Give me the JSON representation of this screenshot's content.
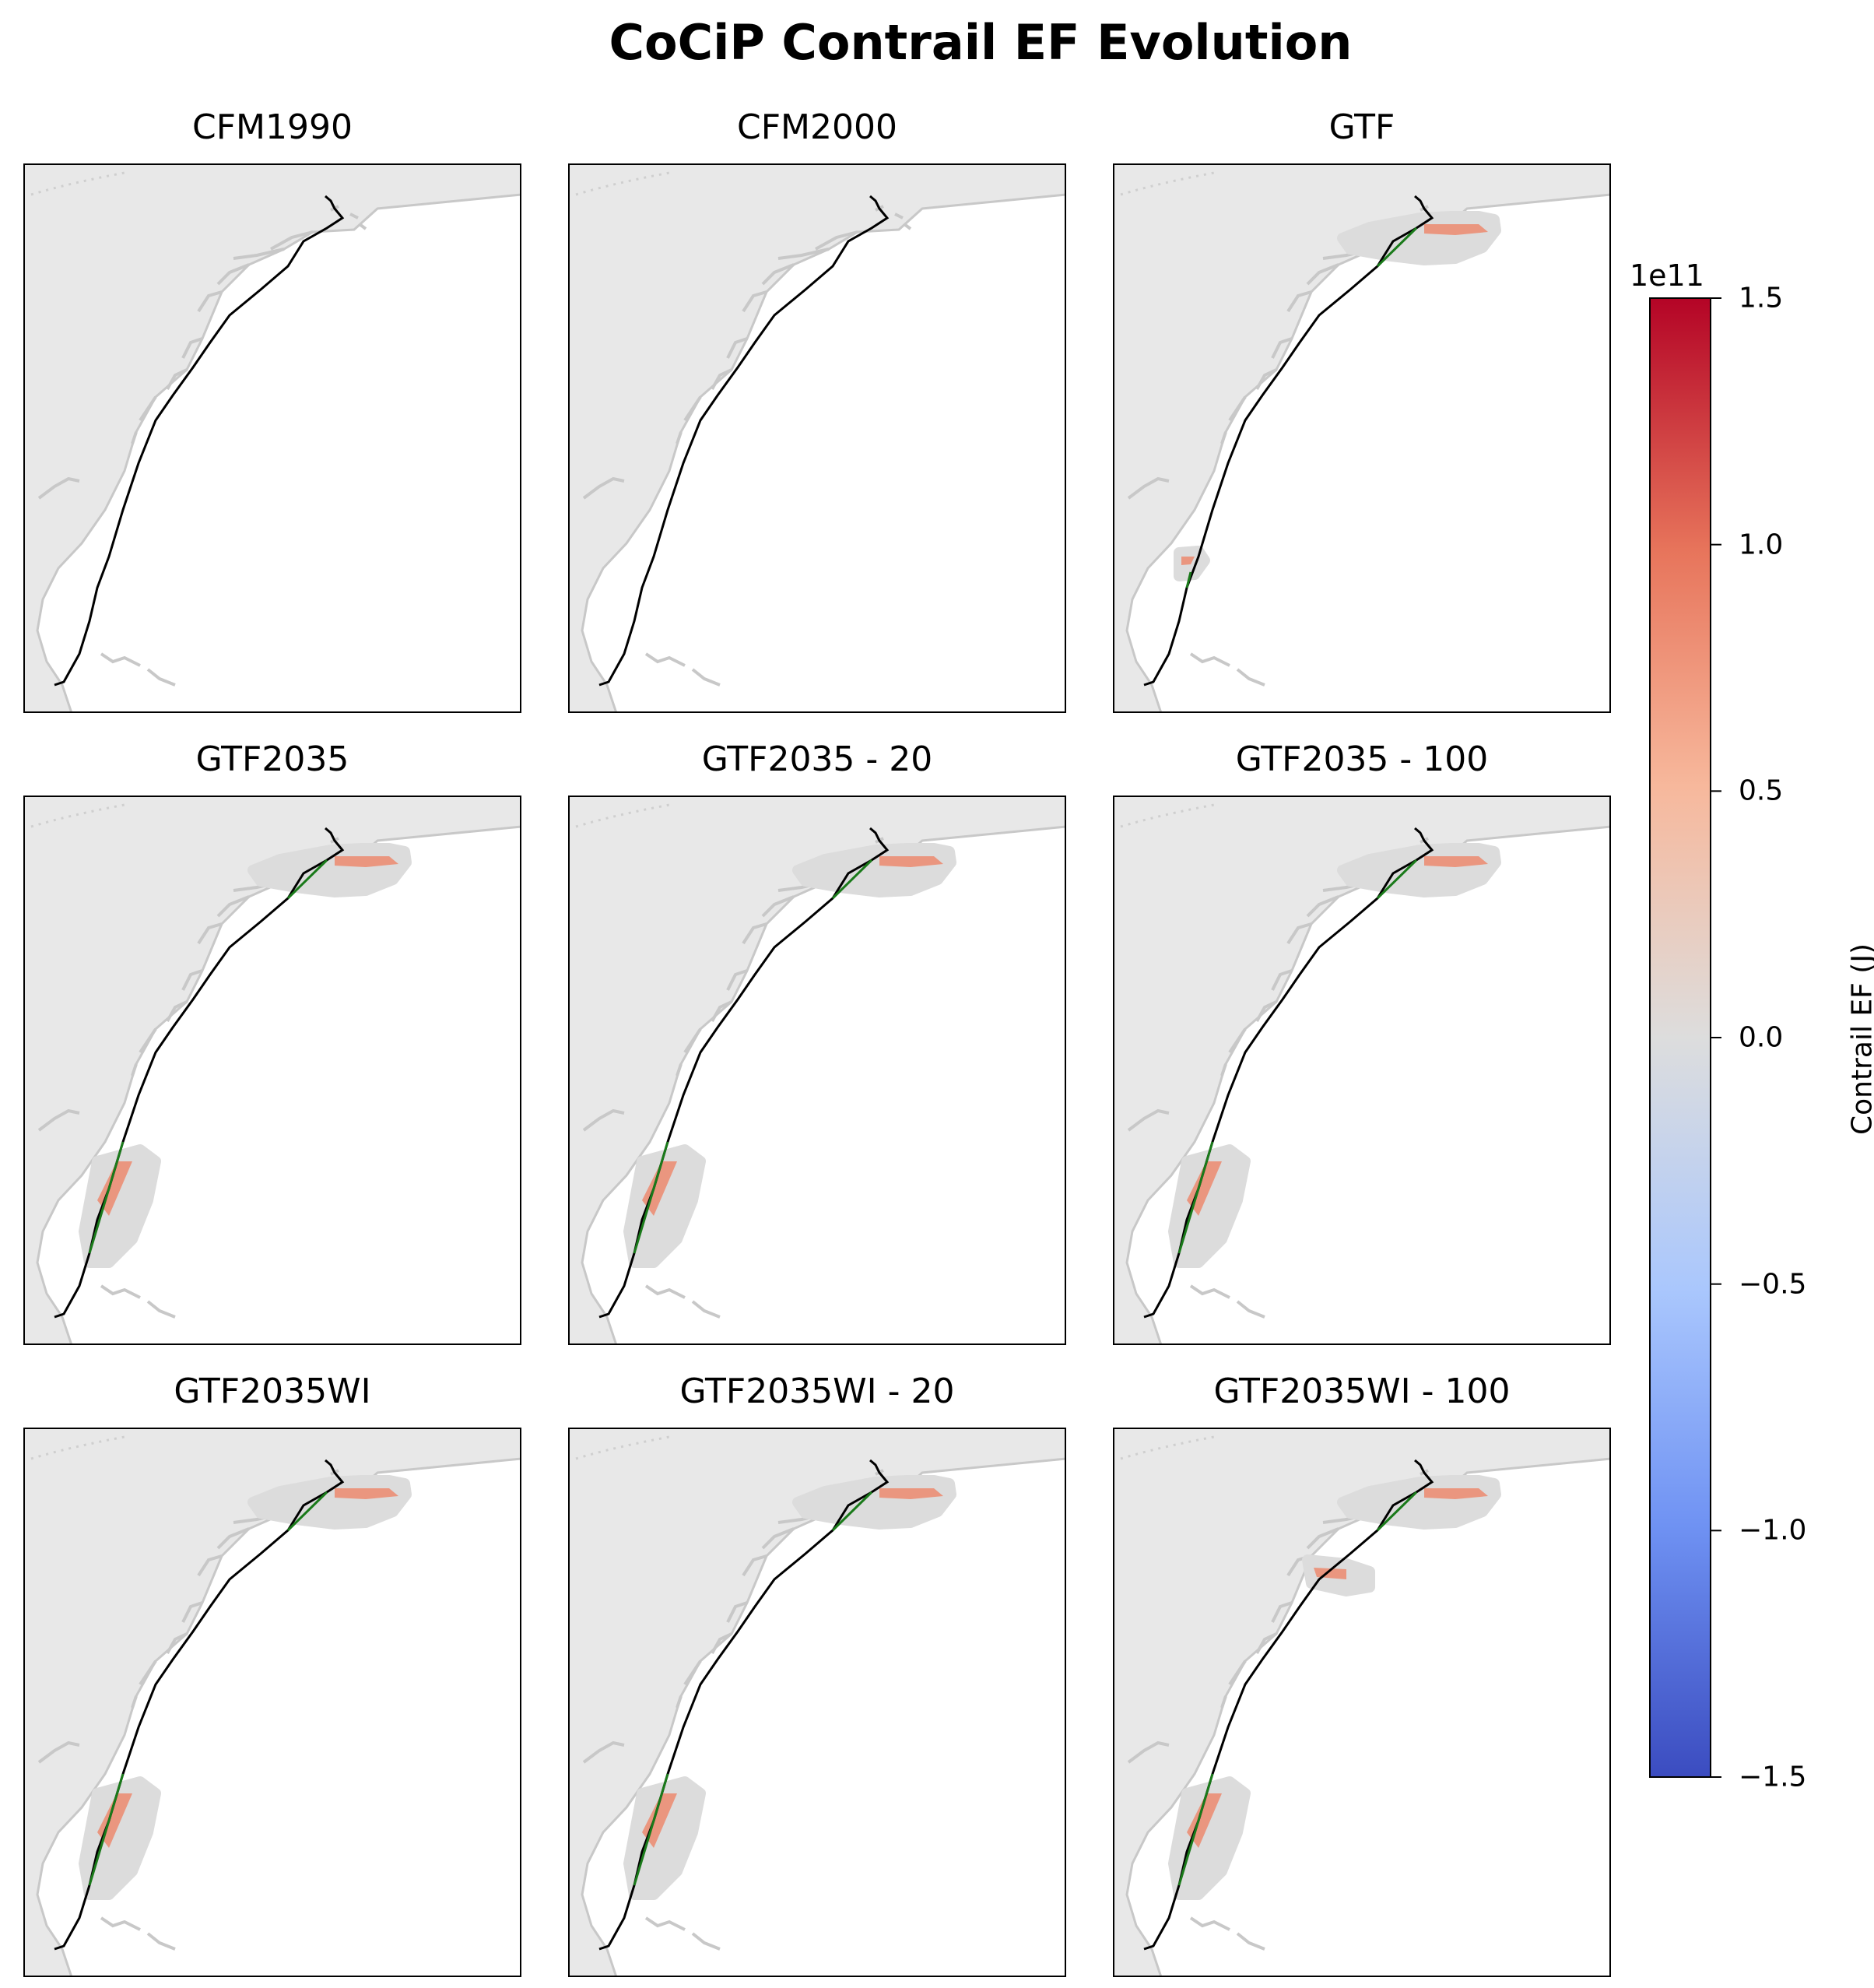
{
  "title": "CoCiP Contrail EF Evolution",
  "panels": [
    {
      "title": "CFM1990",
      "contrail_regions": []
    },
    {
      "title": "CFM2000",
      "contrail_regions": []
    },
    {
      "title": "GTF",
      "contrail_regions": [
        "north",
        "south-small"
      ]
    },
    {
      "title": "GTF2035",
      "contrail_regions": [
        "north",
        "south"
      ]
    },
    {
      "title": "GTF2035 - 20",
      "contrail_regions": [
        "north",
        "south"
      ]
    },
    {
      "title": "GTF2035 - 100",
      "contrail_regions": [
        "north",
        "south"
      ]
    },
    {
      "title": "GTF2035WI",
      "contrail_regions": [
        "north",
        "south"
      ]
    },
    {
      "title": "GTF2035WI - 20",
      "contrail_regions": [
        "north",
        "south"
      ]
    },
    {
      "title": "GTF2035WI - 100",
      "contrail_regions": [
        "north",
        "mid",
        "south"
      ]
    }
  ],
  "colorbar": {
    "label": "Contrail EF (J)",
    "multiplier": "1e11",
    "range": [
      -1.5,
      1.5
    ],
    "ticks": [
      "−1.5",
      "−1.0",
      "−0.5",
      "0.0",
      "0.5",
      "1.0",
      "1.5"
    ],
    "tick_values": [
      -1.5,
      -1.0,
      -0.5,
      0.0,
      0.5,
      1.0,
      1.5
    ],
    "colormap": "coolwarm",
    "colors": {
      "low": "#3b4cc0",
      "mid": "#dddddd",
      "high": "#b40426"
    }
  },
  "colors": {
    "flight_path": "#000000",
    "contrail_segment": "#1a7a1a",
    "land": "#e8e8e8",
    "coast": "#c8c8c8"
  },
  "chart_data": {
    "type": "heatmap",
    "title": "CoCiP Contrail EF Evolution",
    "subplots": [
      "CFM1990",
      "CFM2000",
      "GTF",
      "GTF2035",
      "GTF2035 - 20",
      "GTF2035 - 100",
      "GTF2035WI",
      "GTF2035WI - 20",
      "GTF2035WI - 100"
    ],
    "value_label": "Contrail EF (J)",
    "value_range": [
      -150000000000.0,
      150000000000.0
    ],
    "grid": false,
    "legend": "right colorbar"
  }
}
